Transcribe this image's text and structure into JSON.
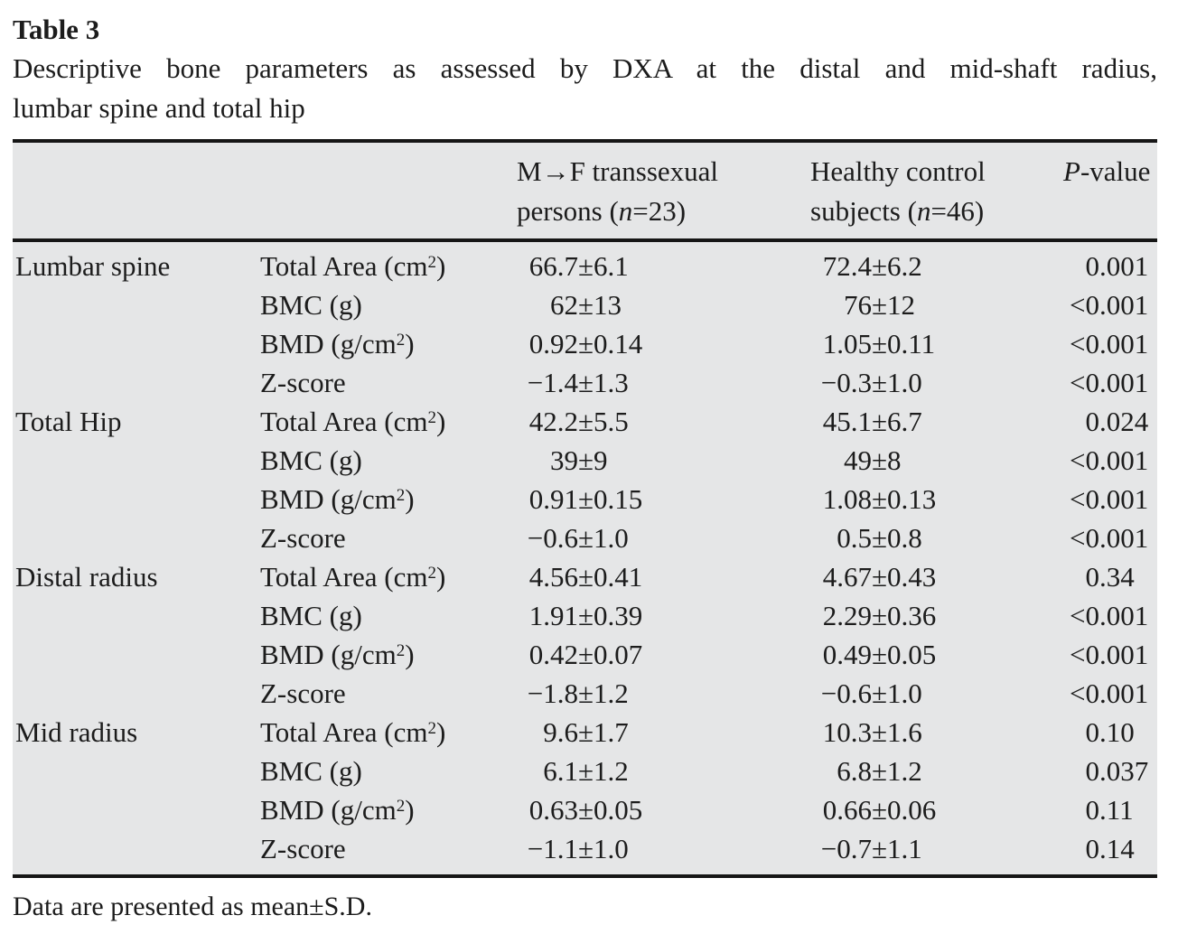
{
  "title": "Table 3",
  "caption": {
    "line1": "Descriptive bone parameters as assessed by DXA at the distal and mid-shaft radius,",
    "line2": "lumbar spine and total hip"
  },
  "symbols": {
    "pm": "±",
    "dot": "."
  },
  "header": {
    "mf": {
      "line1": "M→F transsexual",
      "line2_pre": "persons (",
      "line2_n": "n",
      "line2_post": "=23)"
    },
    "hc": {
      "line1": "Healthy control",
      "line2_pre": "subjects (",
      "line2_n": "n",
      "line2_post": "=46)"
    },
    "p": {
      "italic": "P",
      "rest": "-value"
    }
  },
  "rows": [
    {
      "group": "Lumbar spine",
      "param": {
        "pre": "Total Area (cm",
        "sup": "2",
        "post": ")"
      },
      "mf": {
        "m": "66.7",
        "s": "6.1"
      },
      "hc": {
        "m": "72.4",
        "s": "6.2"
      },
      "p": {
        "pre": "0",
        "dec": "001"
      }
    },
    {
      "group": "",
      "param": {
        "pre": "BMC (g)"
      },
      "mf": {
        "m": "62",
        "s": "13"
      },
      "hc": {
        "m": "76",
        "s": "12"
      },
      "p": {
        "pre": "<0",
        "dec": "001"
      }
    },
    {
      "group": "",
      "param": {
        "pre": "BMD (g/cm",
        "sup": "2",
        "post": ")"
      },
      "mf": {
        "m": "0.92",
        "s": "0.14"
      },
      "hc": {
        "m": "1.05",
        "s": "0.11"
      },
      "p": {
        "pre": "<0",
        "dec": "001"
      }
    },
    {
      "group": "",
      "param": {
        "pre": "Z-score"
      },
      "mf": {
        "m": "−1.4",
        "s": "1.3"
      },
      "hc": {
        "m": "−0.3",
        "s": "1.0"
      },
      "p": {
        "pre": "<0",
        "dec": "001"
      }
    },
    {
      "group": "Total Hip",
      "param": {
        "pre": "Total Area (cm",
        "sup": "2",
        "post": ")"
      },
      "mf": {
        "m": "42.2",
        "s": "5.5"
      },
      "hc": {
        "m": "45.1",
        "s": "6.7"
      },
      "p": {
        "pre": "0",
        "dec": "024"
      }
    },
    {
      "group": "",
      "param": {
        "pre": "BMC (g)"
      },
      "mf": {
        "m": "39",
        "s": "9"
      },
      "hc": {
        "m": "49",
        "s": "8"
      },
      "p": {
        "pre": "<0",
        "dec": "001"
      }
    },
    {
      "group": "",
      "param": {
        "pre": "BMD (g/cm",
        "sup": "2",
        "post": ")"
      },
      "mf": {
        "m": "0.91",
        "s": "0.15"
      },
      "hc": {
        "m": "1.08",
        "s": "0.13"
      },
      "p": {
        "pre": "<0",
        "dec": "001"
      }
    },
    {
      "group": "",
      "param": {
        "pre": "Z-score"
      },
      "mf": {
        "m": "−0.6",
        "s": "1.0"
      },
      "hc": {
        "m": "0.5",
        "s": "0.8"
      },
      "p": {
        "pre": "<0",
        "dec": "001"
      }
    },
    {
      "group": "Distal radius",
      "param": {
        "pre": "Total Area (cm",
        "sup": "2",
        "post": ")"
      },
      "mf": {
        "m": "4.56",
        "s": "0.41"
      },
      "hc": {
        "m": "4.67",
        "s": "0.43"
      },
      "p": {
        "pre": "0",
        "dec": "34"
      }
    },
    {
      "group": "",
      "param": {
        "pre": "BMC (g)"
      },
      "mf": {
        "m": "1.91",
        "s": "0.39"
      },
      "hc": {
        "m": "2.29",
        "s": "0.36"
      },
      "p": {
        "pre": "<0",
        "dec": "001"
      }
    },
    {
      "group": "",
      "param": {
        "pre": "BMD (g/cm",
        "sup": "2",
        "post": ")"
      },
      "mf": {
        "m": "0.42",
        "s": "0.07"
      },
      "hc": {
        "m": "0.49",
        "s": "0.05"
      },
      "p": {
        "pre": "<0",
        "dec": "001"
      }
    },
    {
      "group": "",
      "param": {
        "pre": "Z-score"
      },
      "mf": {
        "m": "−1.8",
        "s": "1.2"
      },
      "hc": {
        "m": "−0.6",
        "s": "1.0"
      },
      "p": {
        "pre": "<0",
        "dec": "001"
      }
    },
    {
      "group": "Mid radius",
      "param": {
        "pre": "Total Area (cm",
        "sup": "2",
        "post": ")"
      },
      "mf": {
        "m": "9.6",
        "s": "1.7"
      },
      "hc": {
        "m": "10.3",
        "s": "1.6"
      },
      "p": {
        "pre": "0",
        "dec": "10"
      }
    },
    {
      "group": "",
      "param": {
        "pre": "BMC (g)"
      },
      "mf": {
        "m": "6.1",
        "s": "1.2"
      },
      "hc": {
        "m": "6.8",
        "s": "1.2"
      },
      "p": {
        "pre": "0",
        "dec": "037"
      }
    },
    {
      "group": "",
      "param": {
        "pre": "BMD (g/cm",
        "sup": "2",
        "post": ")"
      },
      "mf": {
        "m": "0.63",
        "s": "0.05"
      },
      "hc": {
        "m": "0.66",
        "s": "0.06"
      },
      "p": {
        "pre": "0",
        "dec": "11"
      }
    },
    {
      "group": "",
      "param": {
        "pre": "Z-score"
      },
      "mf": {
        "m": "−1.1",
        "s": "1.0"
      },
      "hc": {
        "m": "−0.7",
        "s": "1.1"
      },
      "p": {
        "pre": "0",
        "dec": "14"
      }
    }
  ],
  "footnote": "Data are presented as mean±S.D.",
  "colors": {
    "table_background": "#e5e6e7",
    "rule": "#161616",
    "text": "#1c1c1c"
  }
}
